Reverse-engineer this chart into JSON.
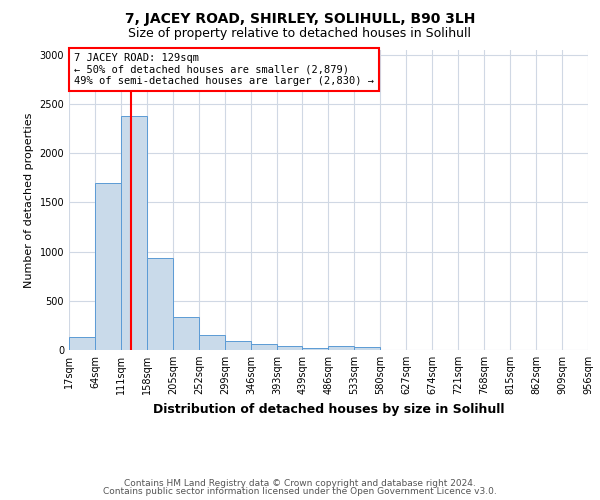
{
  "title": "7, JACEY ROAD, SHIRLEY, SOLIHULL, B90 3LH",
  "subtitle": "Size of property relative to detached houses in Solihull",
  "xlabel": "Distribution of detached houses by size in Solihull",
  "ylabel": "Number of detached properties",
  "bin_edges": [
    17,
    64,
    111,
    158,
    205,
    252,
    299,
    346,
    393,
    439,
    486,
    533,
    580,
    627,
    674,
    721,
    768,
    815,
    862,
    909,
    956
  ],
  "bar_heights": [
    130,
    1700,
    2380,
    940,
    340,
    150,
    90,
    60,
    40,
    25,
    40,
    30,
    0,
    0,
    0,
    0,
    0,
    0,
    0,
    0
  ],
  "bar_facecolor": "#c9daea",
  "bar_edgecolor": "#5b9bd5",
  "grid_color": "#d0d8e4",
  "vline_x": 129,
  "vline_color": "red",
  "annotation_text": "7 JACEY ROAD: 129sqm\n← 50% of detached houses are smaller (2,879)\n49% of semi-detached houses are larger (2,830) →",
  "annotation_box_color": "white",
  "annotation_box_edgecolor": "red",
  "ylim": [
    0,
    3050
  ],
  "yticks": [
    0,
    500,
    1000,
    1500,
    2000,
    2500,
    3000
  ],
  "footer_line1": "Contains HM Land Registry data © Crown copyright and database right 2024.",
  "footer_line2": "Contains public sector information licensed under the Open Government Licence v3.0.",
  "title_fontsize": 10,
  "subtitle_fontsize": 9,
  "tick_label_fontsize": 7,
  "ylabel_fontsize": 8,
  "xlabel_fontsize": 9,
  "footer_fontsize": 6.5,
  "annotation_fontsize": 7.5
}
